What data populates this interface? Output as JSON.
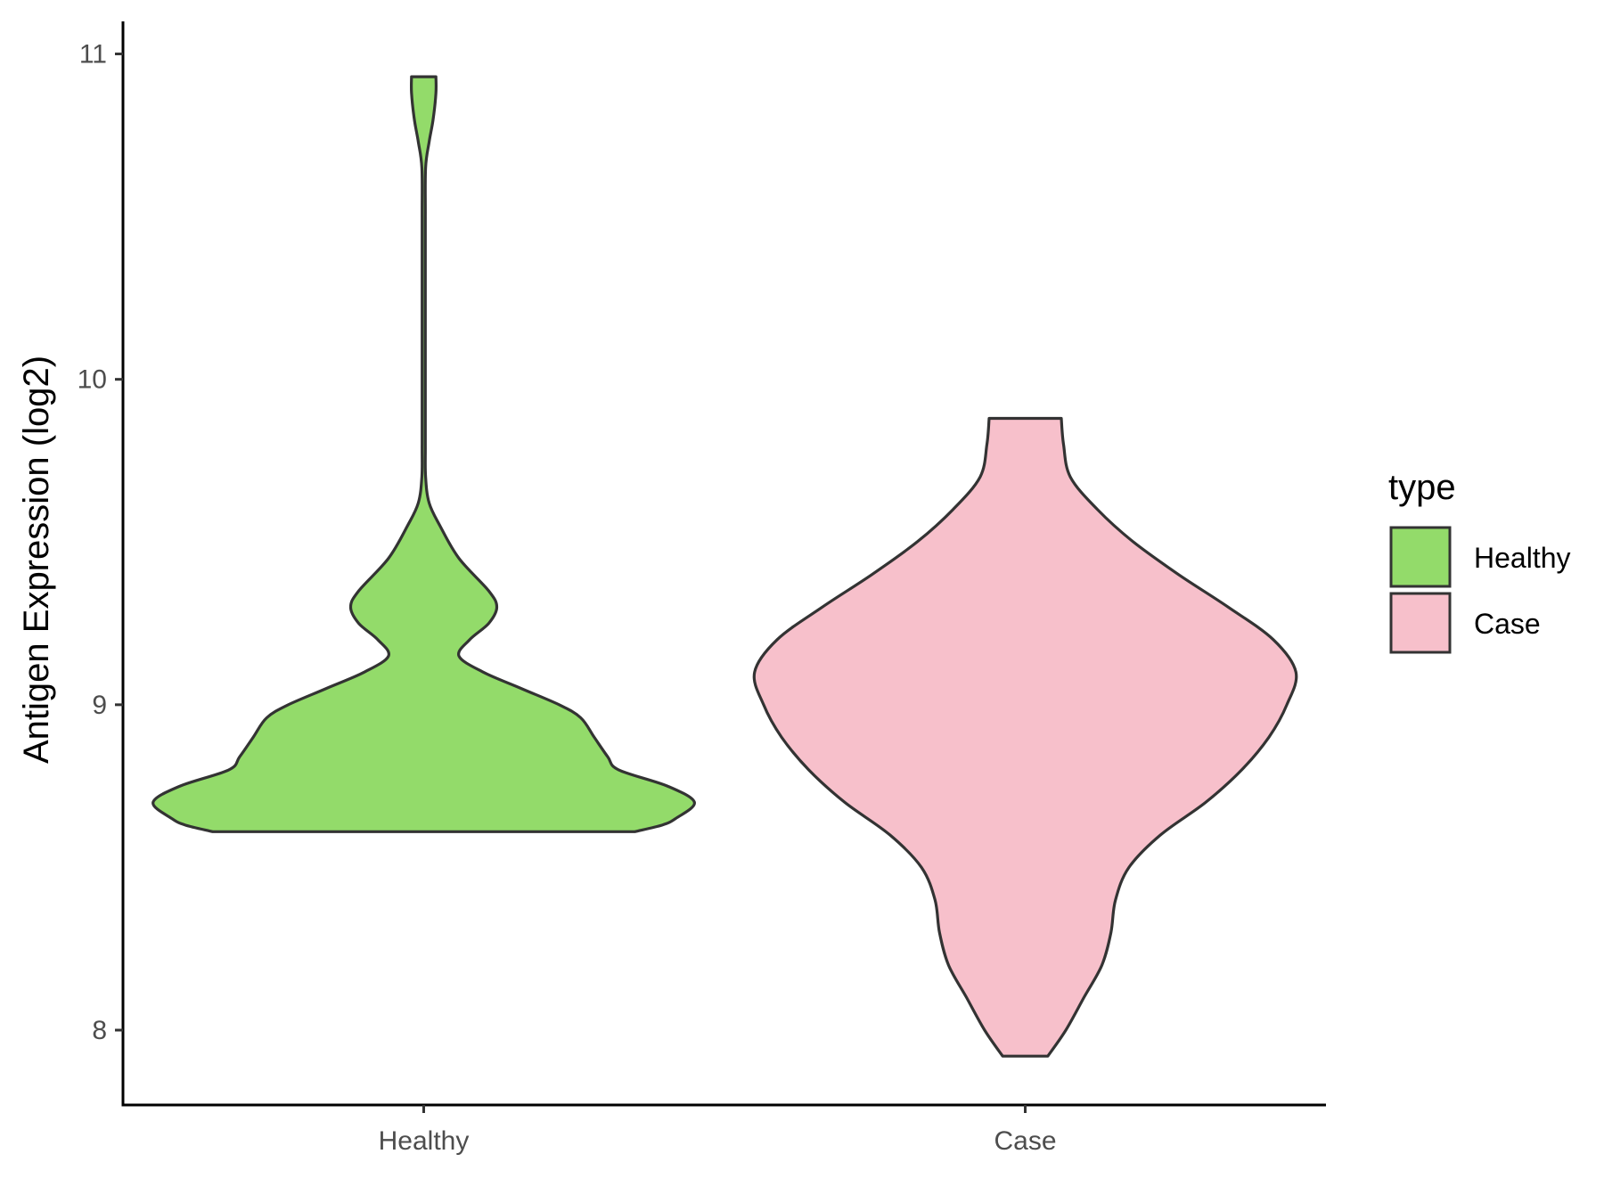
{
  "chart_data": {
    "type": "violin",
    "ylabel": "Antigen Expression (log2)",
    "xlabel": "",
    "ylim": [
      7.77,
      11.1
    ],
    "yticks": [
      8,
      9,
      10,
      11
    ],
    "categories": [
      "Healthy",
      "Case"
    ],
    "grid": false,
    "legend": {
      "title": "type",
      "position": "right",
      "entries": [
        {
          "label": "Healthy",
          "color": "#93db6a"
        },
        {
          "label": "Case",
          "color": "#f7c0cb"
        }
      ]
    },
    "series": [
      {
        "name": "Healthy",
        "color": "#93db6a",
        "ymin": 8.61,
        "ymax": 10.93,
        "density": [
          [
            8.61,
            0.78
          ],
          [
            8.63,
            0.88
          ],
          [
            8.65,
            0.93
          ],
          [
            8.7,
            1.0
          ],
          [
            8.75,
            0.9
          ],
          [
            8.8,
            0.72
          ],
          [
            8.84,
            0.68
          ],
          [
            8.9,
            0.63
          ],
          [
            8.96,
            0.58
          ],
          [
            9.0,
            0.5
          ],
          [
            9.05,
            0.36
          ],
          [
            9.1,
            0.22
          ],
          [
            9.15,
            0.13
          ],
          [
            9.2,
            0.17
          ],
          [
            9.25,
            0.24
          ],
          [
            9.3,
            0.27
          ],
          [
            9.35,
            0.24
          ],
          [
            9.45,
            0.13
          ],
          [
            9.55,
            0.06
          ],
          [
            9.62,
            0.02
          ],
          [
            9.7,
            0.007
          ],
          [
            9.8,
            0.006
          ],
          [
            10.0,
            0.006
          ],
          [
            10.3,
            0.006
          ],
          [
            10.5,
            0.006
          ],
          [
            10.65,
            0.007
          ],
          [
            10.73,
            0.02
          ],
          [
            10.8,
            0.035
          ],
          [
            10.88,
            0.045
          ],
          [
            10.93,
            0.045
          ]
        ]
      },
      {
        "name": "Case",
        "color": "#f7c0cb",
        "ymin": 7.92,
        "ymax": 9.88,
        "density": [
          [
            7.92,
            0.05
          ],
          [
            8.0,
            0.09
          ],
          [
            8.1,
            0.13
          ],
          [
            8.2,
            0.17
          ],
          [
            8.3,
            0.19
          ],
          [
            8.4,
            0.2
          ],
          [
            8.5,
            0.23
          ],
          [
            8.6,
            0.3
          ],
          [
            8.7,
            0.4
          ],
          [
            8.8,
            0.48
          ],
          [
            8.9,
            0.54
          ],
          [
            9.0,
            0.58
          ],
          [
            9.1,
            0.6
          ],
          [
            9.2,
            0.55
          ],
          [
            9.3,
            0.45
          ],
          [
            9.4,
            0.34
          ],
          [
            9.5,
            0.24
          ],
          [
            9.6,
            0.16
          ],
          [
            9.7,
            0.1
          ],
          [
            9.8,
            0.085
          ],
          [
            9.88,
            0.08
          ]
        ]
      }
    ]
  }
}
